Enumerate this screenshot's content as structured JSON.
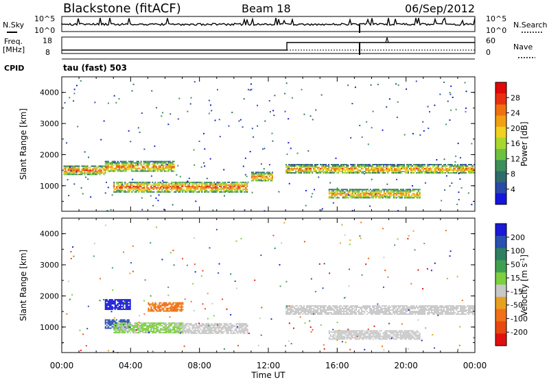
{
  "header": {
    "title": "Blackstone (fitACF)",
    "beam": "Beam 18",
    "date": "06/Sep/2012"
  },
  "status_panels": {
    "nsky_label": "N.Sky",
    "nsky_ticks": [
      "10^5",
      "10^0"
    ],
    "nsearch_label": "N.Search",
    "nsearch_ticks": [
      "10^5",
      "10^0"
    ],
    "freq_label": "Freq.",
    "freq_unit": "[MHz]",
    "freq_ticks": [
      "18",
      "8"
    ],
    "nave_label": "Nave",
    "nave_ticks": [
      "60",
      "0"
    ],
    "cpid_label": "CPID",
    "cpid_value": "tau (fast) 503"
  },
  "colorbars": {
    "power": {
      "label": "Power [dB]",
      "ticks": [
        "28",
        "24",
        "20",
        "16",
        "12",
        "8",
        "4"
      ],
      "colors": [
        "#1515e0",
        "#2a4aa8",
        "#2e6c6c",
        "#3e8f5a",
        "#6cc240",
        "#a8d830",
        "#f0d020",
        "#f0a010",
        "#f07010",
        "#e83010",
        "#e00808"
      ]
    },
    "velocity": {
      "label": "Velocity [m s",
      "label_sup": "-1",
      "label_end": "]",
      "ticks": [
        "200",
        "100",
        "50",
        "15",
        "-15",
        "-50",
        "-100",
        "-200"
      ],
      "colors": [
        "#1a1ad8",
        "#2a50b0",
        "#2e8060",
        "#40a050",
        "#7cd040",
        "#c8c8c8",
        "#e8a020",
        "#f07018",
        "#e84810",
        "#e01010"
      ]
    }
  },
  "chart_data": [
    {
      "type": "heatmap",
      "name": "Power",
      "ylabel": "Slant Range [km]",
      "yticks": [
        "4000",
        "3000",
        "2000",
        "1000"
      ],
      "ylim": [
        180,
        4500
      ],
      "xlim": [
        0,
        24
      ],
      "xticks": [
        "00:00",
        "04:00",
        "08:00",
        "12:00",
        "16:00",
        "20:00",
        "00:00"
      ],
      "xlabel": "Time UT",
      "colorbar": "power",
      "echo_bands": [
        {
          "t0": 0.1,
          "t1": 2.5,
          "r0": 1380,
          "r1": 1650,
          "level": 3
        },
        {
          "t0": 2.5,
          "t1": 6.5,
          "r0": 1450,
          "r1": 1800,
          "level": 2
        },
        {
          "t0": 3.0,
          "t1": 10.8,
          "r0": 820,
          "r1": 1130,
          "level": 3
        },
        {
          "t0": 11.0,
          "t1": 12.2,
          "r0": 1150,
          "r1": 1450,
          "level": 2
        },
        {
          "t0": 13.0,
          "t1": 24.0,
          "r0": 1400,
          "r1": 1700,
          "level": 2
        },
        {
          "t0": 15.5,
          "t1": 20.8,
          "r0": 600,
          "r1": 900,
          "level": 2
        }
      ]
    },
    {
      "type": "heatmap",
      "name": "Velocity",
      "ylabel": "Slant Range [km]",
      "yticks": [
        "4000",
        "3000",
        "2000",
        "1000"
      ],
      "ylim": [
        180,
        4500
      ],
      "xlim": [
        0,
        24
      ],
      "xticks": [
        "00:00",
        "04:00",
        "08:00",
        "12:00",
        "16:00",
        "20:00",
        "00:00"
      ],
      "xlabel": "Time UT",
      "colorbar": "velocity",
      "echo_bands": [
        {
          "t0": 2.5,
          "t1": 4.0,
          "r0": 1580,
          "r1": 1900,
          "vel": 250
        },
        {
          "t0": 2.5,
          "t1": 4.0,
          "r0": 950,
          "r1": 1250,
          "vel": 150
        },
        {
          "t0": 5.0,
          "t1": 7.0,
          "r0": 1500,
          "r1": 1800,
          "vel": -60
        },
        {
          "t0": 3.0,
          "t1": 7.0,
          "r0": 820,
          "r1": 1150,
          "vel": 20
        },
        {
          "t0": 7.0,
          "t1": 10.8,
          "r0": 820,
          "r1": 1130,
          "vel": 0
        },
        {
          "t0": 13.0,
          "t1": 24.0,
          "r0": 1400,
          "r1": 1700,
          "vel": 0
        },
        {
          "t0": 15.5,
          "t1": 20.8,
          "r0": 600,
          "r1": 900,
          "vel": 0
        }
      ]
    }
  ]
}
